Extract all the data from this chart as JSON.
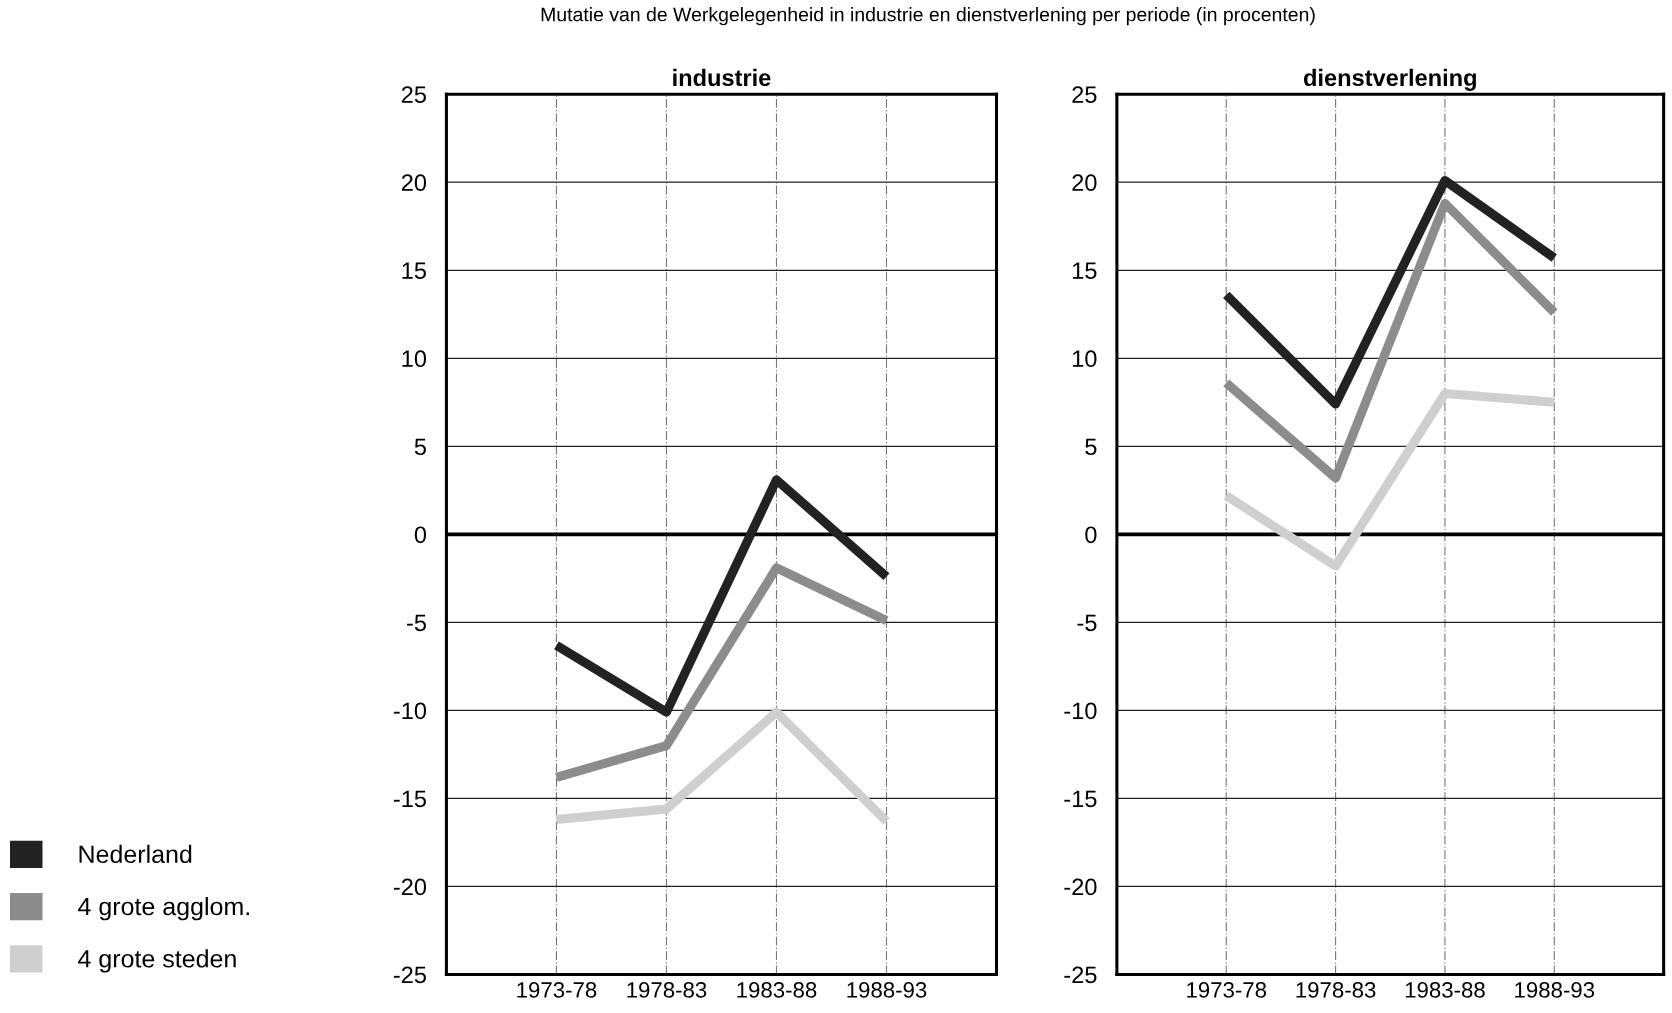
{
  "chart_data": [
    {
      "type": "line",
      "title": "industrie",
      "annotations": [
        "Mutatie van de Werkgelegenheid in industrie en dienstverlening per periode (in procenten)"
      ],
      "categories": [
        "1973-78",
        "1978-83",
        "1983-88",
        "1988-93"
      ],
      "series": [
        {
          "name": "Nederland",
          "color": "#222222",
          "values": [
            -6.3,
            -10.1,
            3.1,
            -2.4
          ]
        },
        {
          "name": "4 grote agglom.",
          "color": "#8c8c8c",
          "values": [
            -13.8,
            -12.0,
            -1.9,
            -4.9
          ]
        },
        {
          "name": "4 grote steden",
          "color": "#cfcfcf",
          "values": [
            -16.2,
            -15.6,
            -10.1,
            -16.3
          ]
        }
      ],
      "ylim": [
        -25,
        25
      ],
      "yticks": [
        -25,
        -20,
        -15,
        -10,
        -5,
        0,
        5,
        10,
        15,
        20,
        25
      ],
      "grid": true,
      "legend": "bottom left",
      "ref_lines": [
        {
          "axis": "y",
          "value": 0,
          "color": "#000000"
        }
      ]
    },
    {
      "type": "line",
      "title": "dienstverlening",
      "categories": [
        "1973-78",
        "1978-83",
        "1983-88",
        "1988-93"
      ],
      "series": [
        {
          "color": "#222222",
          "values": [
            13.6,
            7.4,
            20.1,
            15.7
          ]
        },
        {
          "color": "#8c8c8c",
          "values": [
            8.6,
            3.2,
            18.8,
            12.6
          ]
        },
        {
          "color": "#cfcfcf",
          "values": [
            2.2,
            -1.8,
            8.0,
            7.5
          ]
        }
      ],
      "ylim": [
        -25,
        25
      ],
      "yticks": [
        -25,
        -20,
        -15,
        -10,
        -5,
        0,
        5,
        10,
        15,
        20,
        25
      ],
      "grid": true,
      "ref_lines": [
        {
          "axis": "y",
          "value": 0,
          "color": "#000000"
        }
      ]
    }
  ]
}
